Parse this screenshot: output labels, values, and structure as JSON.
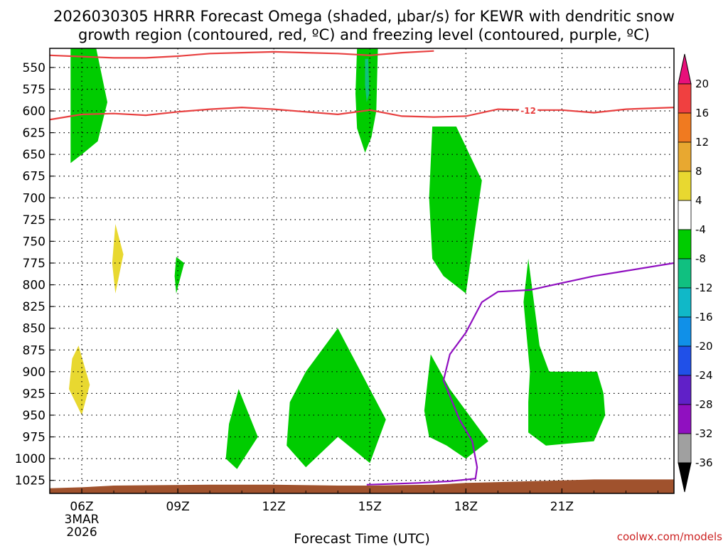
{
  "chart_data": {
    "type": "contour",
    "title_line1": "2026030305 HRRR Forecast Omega (shaded, μbar/s) for KEWR with dendritic snow",
    "title_line2": "growth region (contoured, red, ºC) and freezing level (contoured, purple, ºC)",
    "xlabel": "Forecast Time (UTC)",
    "credit": "coolwx.com/models",
    "x_range_hours": [
      5.0,
      24.5
    ],
    "y_range_hpa": [
      528,
      1040
    ],
    "y_ticks": [
      550,
      575,
      600,
      625,
      650,
      675,
      700,
      725,
      750,
      775,
      800,
      825,
      850,
      875,
      900,
      925,
      950,
      975,
      1000,
      1025
    ],
    "x_ticks": [
      {
        "hour": 6,
        "label": "06Z"
      },
      {
        "hour": 9,
        "label": "09Z"
      },
      {
        "hour": 12,
        "label": "12Z"
      },
      {
        "hour": 15,
        "label": "15Z"
      },
      {
        "hour": 18,
        "label": "18Z"
      },
      {
        "hour": 21,
        "label": "21Z"
      }
    ],
    "date_label": [
      "3MAR",
      "2026"
    ],
    "colorbar": {
      "levels": [
        {
          "value": 20,
          "color": "#e8107a"
        },
        {
          "value": 16,
          "color": "#f04040"
        },
        {
          "value": 12,
          "color": "#f07a20"
        },
        {
          "value": 8,
          "color": "#e8a830"
        },
        {
          "value": 4,
          "color": "#e8d830"
        },
        {
          "value": -4,
          "color": "#ffffff"
        },
        {
          "value": -8,
          "color": "#00cc00"
        },
        {
          "value": -12,
          "color": "#10c080"
        },
        {
          "value": -16,
          "color": "#10b8c8"
        },
        {
          "value": -20,
          "color": "#1090e8"
        },
        {
          "value": -24,
          "color": "#2050e8"
        },
        {
          "value": -28,
          "color": "#6020c8"
        },
        {
          "value": -32,
          "color": "#9010c0"
        },
        {
          "value": -36,
          "color": "#a0a0a0"
        }
      ],
      "tick_labels": [
        "20",
        "16",
        "12",
        "8",
        "4",
        "-4",
        "-8",
        "-12",
        "-16",
        "-20",
        "-24",
        "-28",
        "-32",
        "-36"
      ],
      "top_color": "#e8107a",
      "bottom_color": "#000000"
    },
    "shaded_regions": [
      {
        "name": "omega-region-1",
        "color": "#00cc00",
        "points": [
          [
            5.65,
            528
          ],
          [
            6.45,
            528
          ],
          [
            6.8,
            590
          ],
          [
            6.5,
            635
          ],
          [
            6.0,
            650
          ],
          [
            5.65,
            660
          ]
        ]
      },
      {
        "name": "omega-region-2",
        "color": "#00cc00",
        "points": [
          [
            14.6,
            528
          ],
          [
            15.25,
            528
          ],
          [
            15.2,
            600
          ],
          [
            15.05,
            630
          ],
          [
            14.85,
            648
          ],
          [
            14.6,
            620
          ],
          [
            14.55,
            580
          ]
        ]
      },
      {
        "name": "omega-region-3",
        "color": "#10c080",
        "points": [
          [
            14.85,
            540
          ],
          [
            14.95,
            540
          ],
          [
            14.98,
            580
          ],
          [
            14.9,
            590
          ],
          [
            14.85,
            570
          ]
        ]
      },
      {
        "name": "omega-region-4",
        "color": "#00cc00",
        "points": [
          [
            16.95,
            618
          ],
          [
            17.7,
            618
          ],
          [
            18.5,
            680
          ],
          [
            18.0,
            810
          ],
          [
            17.3,
            790
          ],
          [
            16.95,
            770
          ],
          [
            16.85,
            700
          ]
        ]
      },
      {
        "name": "omega-region-5",
        "color": "#e8d830",
        "points": [
          [
            7.05,
            730
          ],
          [
            7.3,
            765
          ],
          [
            7.05,
            810
          ],
          [
            6.95,
            775
          ]
        ]
      },
      {
        "name": "omega-region-6",
        "color": "#00cc00",
        "points": [
          [
            8.95,
            768
          ],
          [
            9.2,
            775
          ],
          [
            8.95,
            810
          ],
          [
            8.9,
            790
          ]
        ]
      },
      {
        "name": "omega-region-7",
        "color": "#e8d830",
        "points": [
          [
            5.9,
            870
          ],
          [
            6.25,
            915
          ],
          [
            6.0,
            950
          ],
          [
            5.6,
            920
          ],
          [
            5.7,
            885
          ]
        ]
      },
      {
        "name": "omega-region-8",
        "color": "#00cc00",
        "points": [
          [
            10.9,
            920
          ],
          [
            11.5,
            975
          ],
          [
            10.85,
            1012
          ],
          [
            10.5,
            1000
          ],
          [
            10.6,
            960
          ]
        ]
      },
      {
        "name": "omega-region-9",
        "color": "#00cc00",
        "points": [
          [
            13.0,
            900
          ],
          [
            14.0,
            850
          ],
          [
            15.5,
            955
          ],
          [
            15.0,
            1005
          ],
          [
            14.0,
            975
          ],
          [
            13.0,
            1010
          ],
          [
            12.4,
            985
          ],
          [
            12.5,
            935
          ]
        ]
      },
      {
        "name": "omega-region-10",
        "color": "#00cc00",
        "points": [
          [
            16.9,
            880
          ],
          [
            17.5,
            920
          ],
          [
            18.7,
            980
          ],
          [
            18.0,
            1000
          ],
          [
            17.4,
            985
          ],
          [
            16.85,
            975
          ],
          [
            16.7,
            945
          ]
        ]
      },
      {
        "name": "omega-region-11",
        "color": "#00cc00",
        "points": [
          [
            19.95,
            770
          ],
          [
            20.3,
            870
          ],
          [
            20.6,
            900
          ],
          [
            22.1,
            900
          ],
          [
            22.3,
            925
          ],
          [
            22.35,
            950
          ],
          [
            22.0,
            980
          ],
          [
            20.5,
            985
          ],
          [
            19.95,
            970
          ],
          [
            19.95,
            935
          ],
          [
            20.0,
            900
          ],
          [
            19.8,
            820
          ]
        ]
      }
    ],
    "contours": [
      {
        "name": "dgz-top-contour",
        "color": "#e84040",
        "points": [
          [
            5.0,
            536
          ],
          [
            7.0,
            539
          ],
          [
            8.0,
            539
          ],
          [
            9.0,
            537
          ],
          [
            10.0,
            534
          ],
          [
            11.0,
            533
          ],
          [
            12.0,
            532
          ],
          [
            13.0,
            533
          ],
          [
            14.0,
            534
          ],
          [
            15.0,
            536
          ],
          [
            16.0,
            533
          ],
          [
            17.0,
            531
          ]
        ]
      },
      {
        "name": "dgz-bottom-contour",
        "color": "#e84040",
        "label": "-12",
        "label_hour": 19.95,
        "label_hpa": 600,
        "points": [
          [
            5.0,
            610
          ],
          [
            6.0,
            604
          ],
          [
            7.0,
            603
          ],
          [
            8.0,
            605
          ],
          [
            9.0,
            601
          ],
          [
            10.0,
            598
          ],
          [
            11.0,
            596
          ],
          [
            12.0,
            598
          ],
          [
            13.0,
            601
          ],
          [
            14.0,
            604
          ],
          [
            15.0,
            599
          ],
          [
            16.0,
            606
          ],
          [
            17.0,
            607
          ],
          [
            18.0,
            606
          ],
          [
            19.0,
            598
          ],
          [
            20.0,
            599
          ],
          [
            21.0,
            599
          ],
          [
            22.0,
            602
          ],
          [
            23.0,
            598
          ],
          [
            24.5,
            596
          ]
        ]
      },
      {
        "name": "freezing-level-contour",
        "color": "#9010c0",
        "points": [
          [
            14.9,
            1030
          ],
          [
            16.5,
            1028
          ],
          [
            17.5,
            1026
          ],
          [
            18.3,
            1023
          ],
          [
            18.35,
            1010
          ],
          [
            18.2,
            980
          ],
          [
            17.8,
            955
          ],
          [
            17.3,
            910
          ],
          [
            17.5,
            880
          ],
          [
            18.0,
            855
          ],
          [
            18.5,
            820
          ],
          [
            19.0,
            808
          ],
          [
            20.0,
            806
          ],
          [
            21.0,
            798
          ],
          [
            22.0,
            790
          ],
          [
            23.0,
            784
          ],
          [
            24.5,
            775
          ]
        ]
      }
    ],
    "terrain": {
      "color": "#a0522d",
      "points": [
        [
          5.0,
          1034
        ],
        [
          6.0,
          1033
        ],
        [
          7.0,
          1031
        ],
        [
          10.0,
          1030
        ],
        [
          12.0,
          1030
        ],
        [
          14.0,
          1031
        ],
        [
          15.0,
          1031
        ],
        [
          17.0,
          1030
        ],
        [
          18.0,
          1028
        ],
        [
          19.0,
          1027
        ],
        [
          20.0,
          1026
        ],
        [
          21.0,
          1025
        ],
        [
          22.0,
          1024
        ],
        [
          24.5,
          1024
        ]
      ]
    }
  }
}
